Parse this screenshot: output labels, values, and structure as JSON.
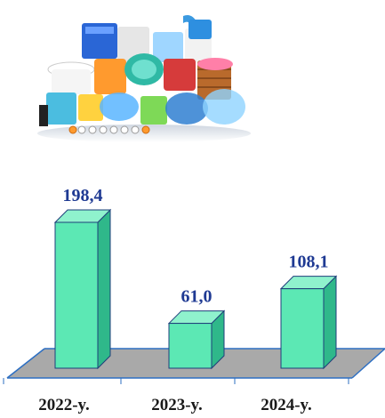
{
  "photo": {
    "subject": "plastic household goods"
  },
  "colors": {
    "bar_front": "#5ce8b4",
    "bar_side": "#2fb88a",
    "bar_top": "#8ff2cd",
    "bar_outline": "#1e3f7a",
    "floor": "#a9a9a9",
    "floor_edge": "#2d6fc2",
    "value_text": "#1f3a93"
  },
  "chart_data": {
    "type": "bar",
    "categories": [
      "2022-y.",
      "2023-y.",
      "2024-y."
    ],
    "values": [
      198.4,
      61.0,
      108.1
    ],
    "value_labels": [
      "198,4",
      "61,0",
      "108,1"
    ],
    "title": "",
    "xlabel": "",
    "ylabel": "",
    "style": "3d-column",
    "grid": false,
    "legend": "none"
  }
}
